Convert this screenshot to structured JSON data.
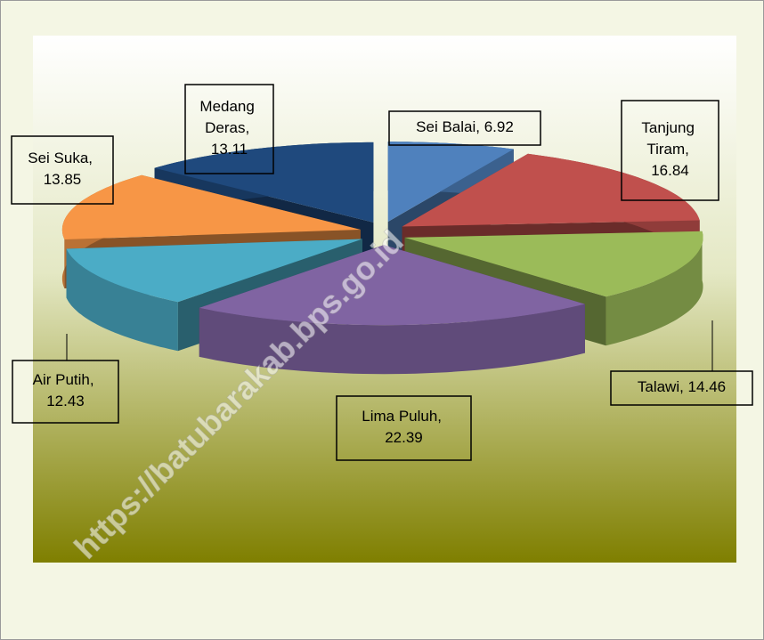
{
  "chart_data": {
    "type": "pie3d",
    "categories": [
      "Sei Balai",
      "Tanjung Tiram",
      "Talawi",
      "Lima Puluh",
      "Air Putih",
      "Sei Suka",
      "Medang Deras"
    ],
    "values": [
      6.92,
      16.84,
      14.46,
      22.39,
      12.43,
      13.85,
      13.11
    ],
    "value_labels": [
      "Sei Balai, 6.92",
      "Tanjung Tiram, 16.84",
      "Talawi, 14.46",
      "Lima Puluh, 22.39",
      "Air Putih, 12.43",
      "Sei Suka, 13.85",
      "Medang Deras, 13.11"
    ],
    "colors": [
      "#4f81bd",
      "#c0504d",
      "#9bbb59",
      "#8064a2",
      "#4bacc6",
      "#f79646",
      "#1f497d"
    ],
    "watermark": "https://batubarakab.bps.go.id"
  }
}
